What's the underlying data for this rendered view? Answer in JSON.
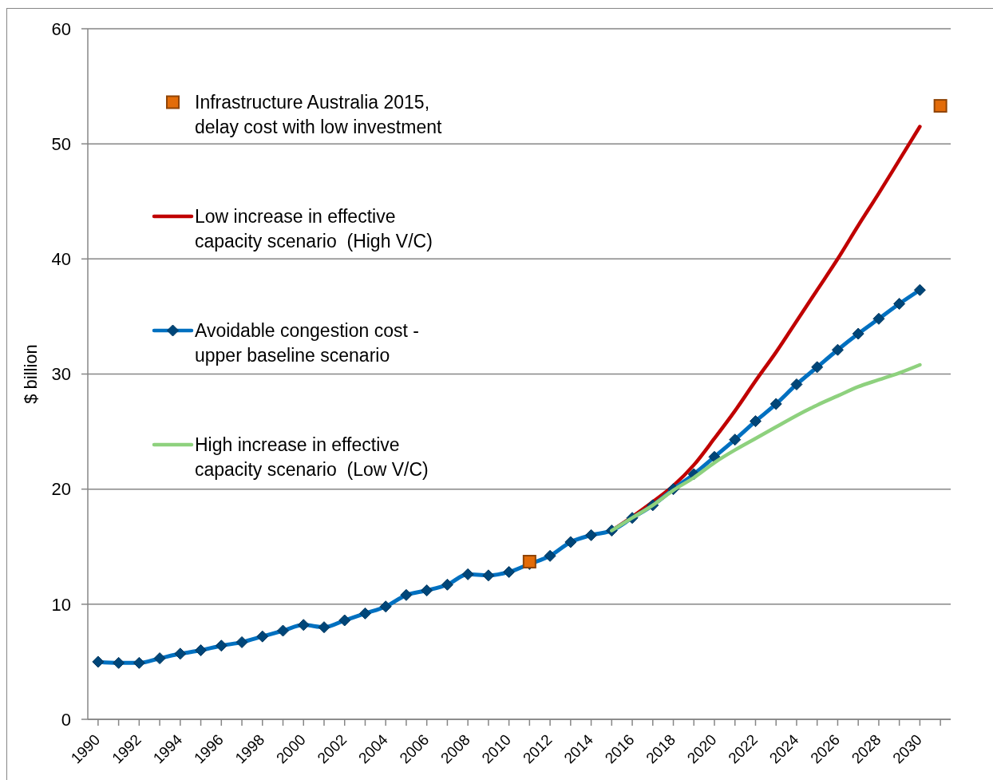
{
  "chart_data": {
    "type": "line",
    "categories": [
      "1990",
      null,
      "1992",
      null,
      "1994",
      null,
      "1996",
      null,
      "1998",
      null,
      "2000",
      null,
      "2002",
      null,
      "2004",
      null,
      "2006",
      null,
      "2008",
      null,
      "2010",
      null,
      "2012",
      null,
      "2014",
      null,
      "2016",
      null,
      "2018",
      null,
      "2020",
      null,
      "2022",
      null,
      "2024",
      null,
      "2026",
      null,
      "2028",
      null,
      "2030",
      null
    ],
    "ylabel": "$ billion",
    "ylim": [
      0,
      60
    ],
    "yticks": [
      0,
      10,
      20,
      30,
      40,
      50,
      60
    ],
    "grid": "y",
    "legend": "top left",
    "series": [
      {
        "name": "Infrastructure Australia 2015, delay cost with low investment",
        "type": "scatter",
        "color": "#e36c09",
        "marker": "square",
        "values": [
          null,
          null,
          null,
          null,
          null,
          null,
          null,
          null,
          null,
          null,
          null,
          null,
          null,
          null,
          null,
          null,
          null,
          null,
          null,
          null,
          null,
          13.7,
          null,
          null,
          null,
          null,
          null,
          null,
          null,
          null,
          null,
          null,
          null,
          null,
          null,
          null,
          null,
          null,
          null,
          null,
          null,
          53.3
        ]
      },
      {
        "name": "Low increase in effective capacity scenario  (High V/C)",
        "color": "#c00000",
        "marker": "none",
        "values": [
          null,
          null,
          null,
          null,
          null,
          null,
          null,
          null,
          null,
          null,
          null,
          null,
          null,
          null,
          null,
          null,
          null,
          null,
          null,
          null,
          null,
          null,
          null,
          null,
          null,
          16.4,
          17.6,
          18.9,
          20.3,
          22.1,
          24.4,
          26.8,
          29.4,
          31.9,
          34.6,
          37.3,
          40.0,
          42.9,
          45.7,
          48.6,
          51.5,
          null
        ]
      },
      {
        "name": "Avoidable congestion cost - upper baseline scenario",
        "color": "#0070c0",
        "marker": "diamond",
        "values": [
          5.0,
          4.9,
          4.9,
          5.3,
          5.7,
          6.0,
          6.4,
          6.7,
          7.2,
          7.7,
          8.2,
          8.0,
          8.6,
          9.2,
          9.8,
          10.8,
          11.2,
          11.7,
          12.6,
          12.5,
          12.8,
          13.5,
          14.2,
          15.4,
          16.0,
          16.4,
          17.5,
          18.6,
          20.0,
          21.3,
          22.8,
          24.3,
          25.9,
          27.4,
          29.1,
          30.6,
          32.1,
          33.5,
          34.8,
          36.1,
          37.3,
          null
        ]
      },
      {
        "name": "High increase in effective capacity scenario  (Low V/C)",
        "color": "#8ed17e",
        "marker": "none",
        "values": [
          null,
          null,
          null,
          null,
          null,
          null,
          null,
          null,
          null,
          null,
          null,
          null,
          null,
          null,
          null,
          null,
          null,
          null,
          null,
          null,
          null,
          null,
          null,
          null,
          null,
          16.4,
          17.5,
          18.6,
          19.9,
          21.0,
          22.3,
          23.4,
          24.4,
          25.4,
          26.4,
          27.3,
          28.1,
          28.9,
          29.5,
          30.1,
          30.8,
          null
        ]
      }
    ]
  }
}
